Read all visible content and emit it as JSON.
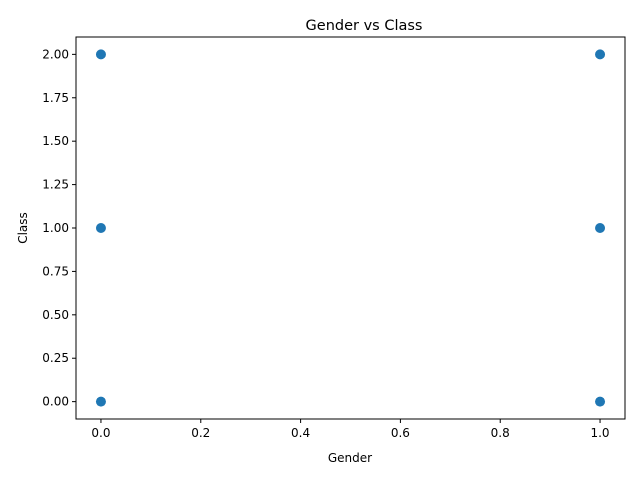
{
  "chart_data": {
    "type": "scatter",
    "title": "Gender vs Class",
    "xlabel": "Gender",
    "ylabel": "Class",
    "xlim": [
      -0.05,
      1.05
    ],
    "ylim": [
      -0.1,
      2.1
    ],
    "xticks": [
      "0.0",
      "0.2",
      "0.4",
      "0.6",
      "0.8",
      "1.0"
    ],
    "yticks": [
      "0.00",
      "0.25",
      "0.50",
      "0.75",
      "1.00",
      "1.25",
      "1.50",
      "1.75",
      "2.00"
    ],
    "grid": false,
    "point_color": "#1f77b4",
    "points": [
      {
        "x": 0,
        "y": 0
      },
      {
        "x": 0,
        "y": 1
      },
      {
        "x": 0,
        "y": 2
      },
      {
        "x": 1,
        "y": 0
      },
      {
        "x": 1,
        "y": 1
      },
      {
        "x": 1,
        "y": 2
      }
    ]
  }
}
